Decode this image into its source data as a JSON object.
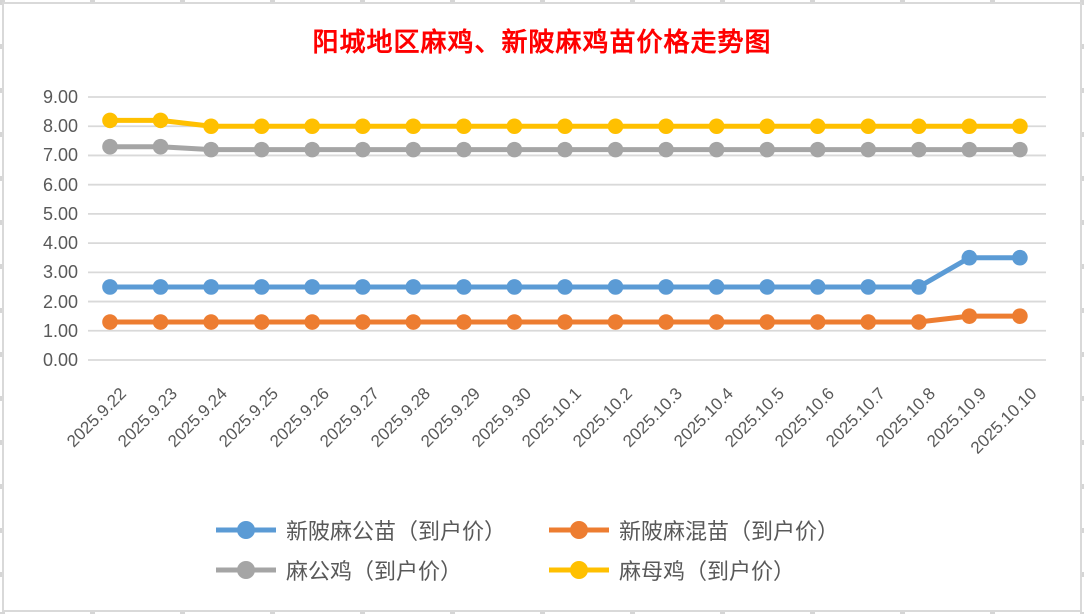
{
  "chart_data": {
    "type": "line",
    "title": "阳城地区麻鸡、新陂麻鸡苗价格走势图",
    "title_color": "#FF0000",
    "categories": [
      "2025.9.22",
      "2025.9.23",
      "2025.9.24",
      "2025.9.25",
      "2025.9.26",
      "2025.9.27",
      "2025.9.28",
      "2025.9.29",
      "2025.9.30",
      "2025.10.1",
      "2025.10.2",
      "2025.10.3",
      "2025.10.4",
      "2025.10.5",
      "2025.10.6",
      "2025.10.7",
      "2025.10.8",
      "2025.10.9",
      "2025.10.10"
    ],
    "series": [
      {
        "name": "新陂麻公苗（到户价）",
        "color": "#5B9BD5",
        "values": [
          2.5,
          2.5,
          2.5,
          2.5,
          2.5,
          2.5,
          2.5,
          2.5,
          2.5,
          2.5,
          2.5,
          2.5,
          2.5,
          2.5,
          2.5,
          2.5,
          2.5,
          3.5,
          3.5
        ]
      },
      {
        "name": "新陂麻混苗（到户价）",
        "color": "#ED7D31",
        "values": [
          1.3,
          1.3,
          1.3,
          1.3,
          1.3,
          1.3,
          1.3,
          1.3,
          1.3,
          1.3,
          1.3,
          1.3,
          1.3,
          1.3,
          1.3,
          1.3,
          1.3,
          1.5,
          1.5
        ]
      },
      {
        "name": "麻公鸡（到户价）",
        "color": "#A5A5A5",
        "values": [
          7.3,
          7.3,
          7.2,
          7.2,
          7.2,
          7.2,
          7.2,
          7.2,
          7.2,
          7.2,
          7.2,
          7.2,
          7.2,
          7.2,
          7.2,
          7.2,
          7.2,
          7.2,
          7.2
        ]
      },
      {
        "name": "麻母鸡（到户价）",
        "color": "#FFC000",
        "values": [
          8.2,
          8.2,
          8.0,
          8.0,
          8.0,
          8.0,
          8.0,
          8.0,
          8.0,
          8.0,
          8.0,
          8.0,
          8.0,
          8.0,
          8.0,
          8.0,
          8.0,
          8.0,
          8.0
        ]
      }
    ],
    "yticks": [
      "0.00",
      "1.00",
      "2.00",
      "3.00",
      "4.00",
      "5.00",
      "6.00",
      "7.00",
      "8.00",
      "9.00"
    ],
    "ylim": [
      0,
      9
    ],
    "xlabel": "",
    "ylabel": "",
    "grid": true,
    "gridline_color": "#D9D9D9",
    "axis_label_color": "#595959",
    "legend_position": "bottom",
    "legend_rows": 2,
    "legend_columns": 2
  }
}
